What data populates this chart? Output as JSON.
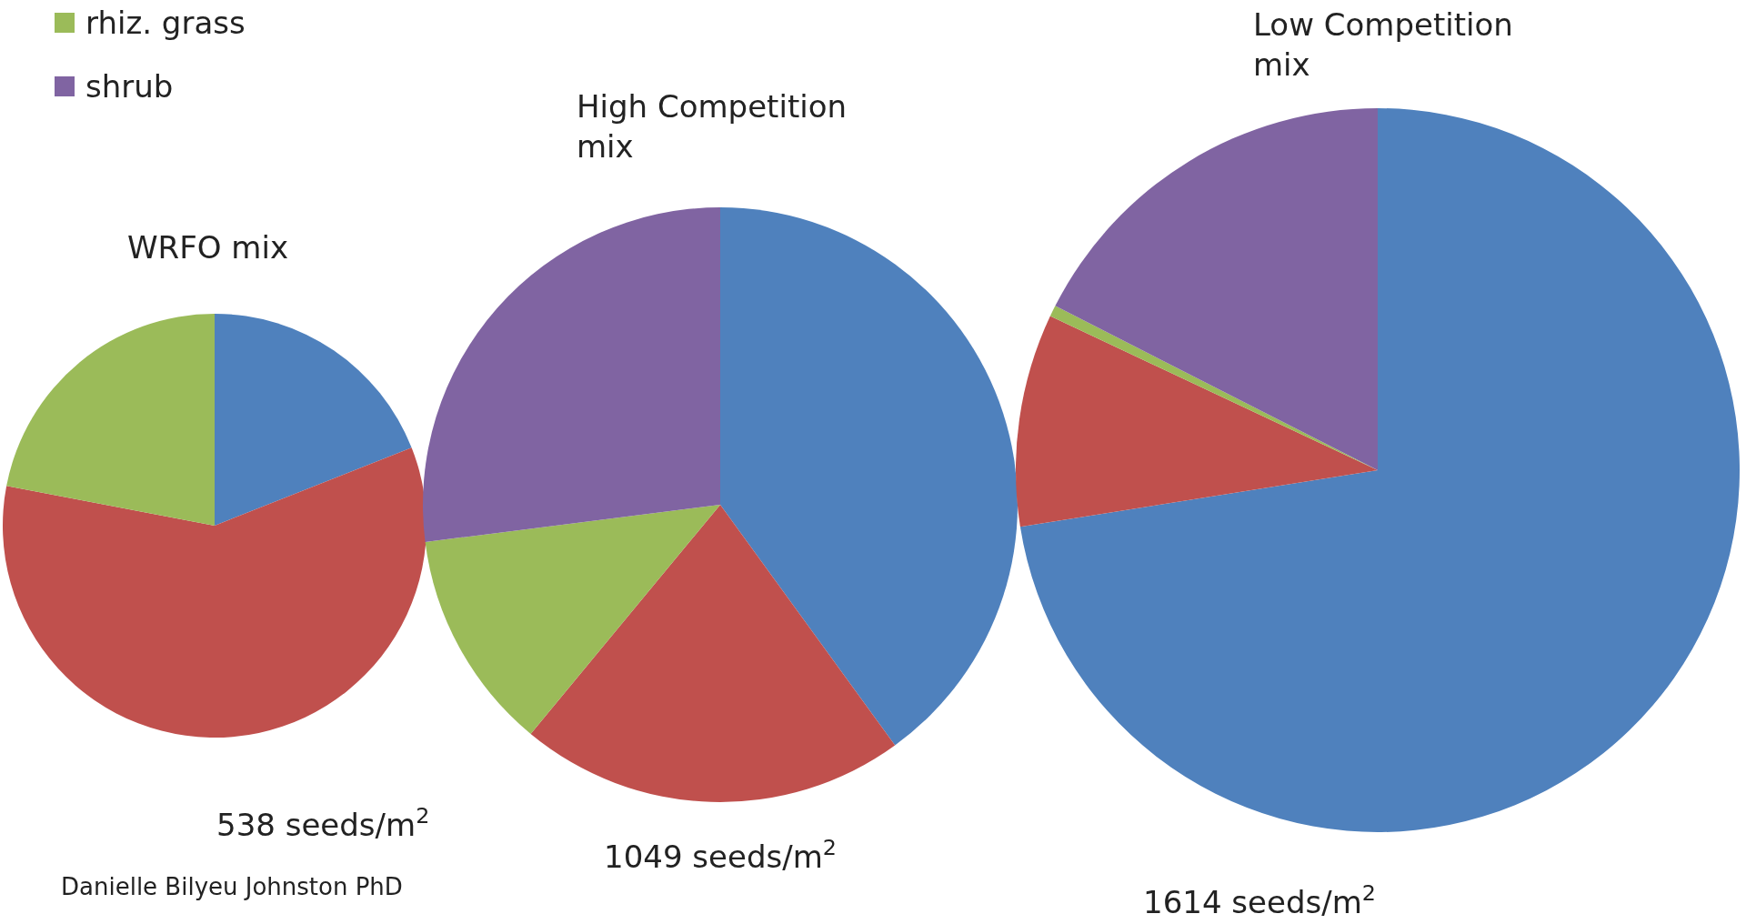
{
  "chart_data": [
    {
      "type": "pie",
      "title": "WRFO mix",
      "categories": [
        null,
        null,
        "rhiz. grass",
        "shrub"
      ],
      "values": [
        19,
        59,
        22,
        0
      ],
      "colors": [
        "#4f81bd",
        "#c0504d",
        "#9bbb59",
        "#8064a2"
      ],
      "legend": "top left",
      "annotations": [
        "538 seeds/m$^{2}$",
        "Danielle Bilyeu Johnston PhD"
      ]
    },
    {
      "type": "pie",
      "title": "High Competition\nmix",
      "categories": [
        null,
        null,
        null,
        null
      ],
      "values": [
        40,
        21,
        12,
        27
      ],
      "colors": [
        "#4f81bd",
        "#c0504d",
        "#9bbb59",
        "#8064a2"
      ],
      "annotations": [
        "1049 seeds/m$^{2}$"
      ]
    },
    {
      "type": "pie",
      "title": "Low Competition\nmix",
      "categories": [
        null,
        null,
        null,
        null
      ],
      "values": [
        72.5,
        9.5,
        0.5,
        17.5
      ],
      "colors": [
        "#4f81bd",
        "#c0504d",
        "#9bbb59",
        "#8064a2"
      ],
      "annotations": [
        "1614 seeds/m$^{2}$"
      ]
    }
  ]
}
